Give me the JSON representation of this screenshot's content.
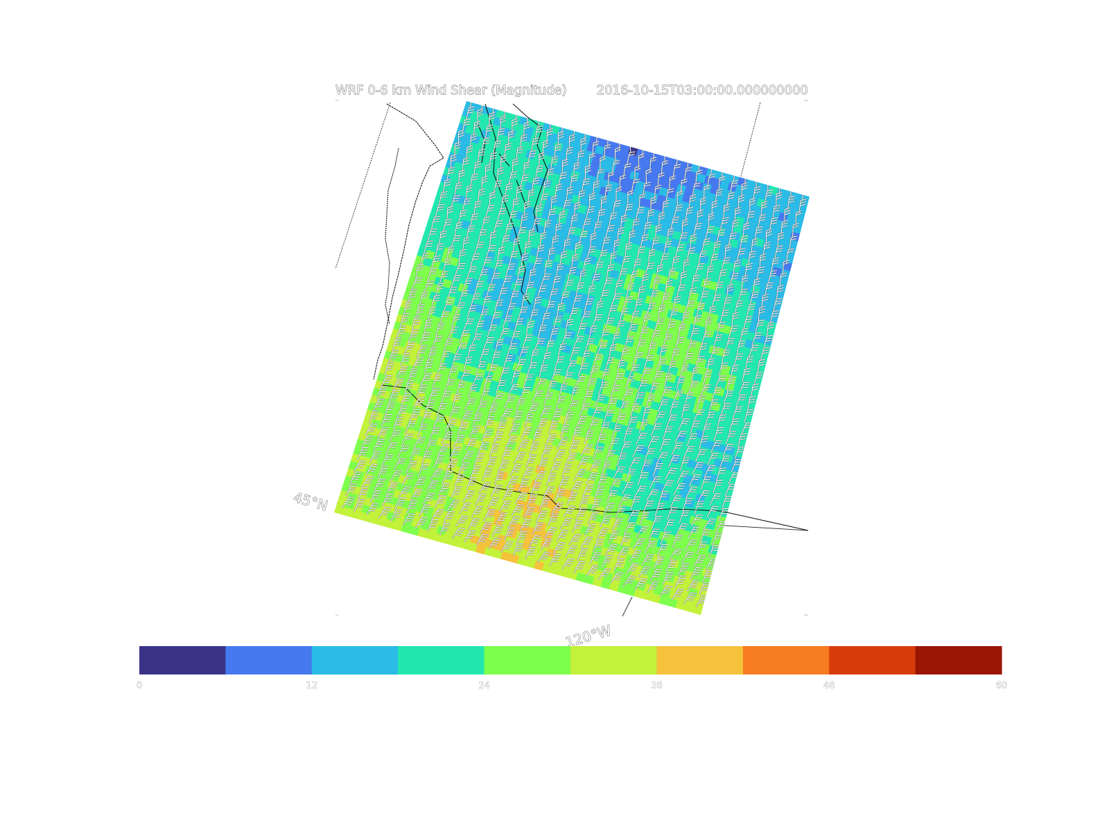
{
  "title_left": "WRF 0-6 km Wind Shear (Magnitude)",
  "title_right": "2016-10-15T03:00:00.000000000",
  "axis_labels": {
    "lat": "45°N",
    "lon": "120°W"
  },
  "colorbar": {
    "min": 0,
    "max": 60,
    "ticks": [
      "0",
      "12",
      "24",
      "36",
      "48",
      "60"
    ],
    "colors": [
      "#3a3489",
      "#4679ef",
      "#2abce6",
      "#22e8b0",
      "#7dff4c",
      "#c3f23a",
      "#f5c23b",
      "#f87c22",
      "#d83c0c",
      "#9b1502"
    ]
  },
  "colors": {
    "coastline": "#000000",
    "barb": "#ffffff",
    "barb_outline": "#555555"
  }
}
